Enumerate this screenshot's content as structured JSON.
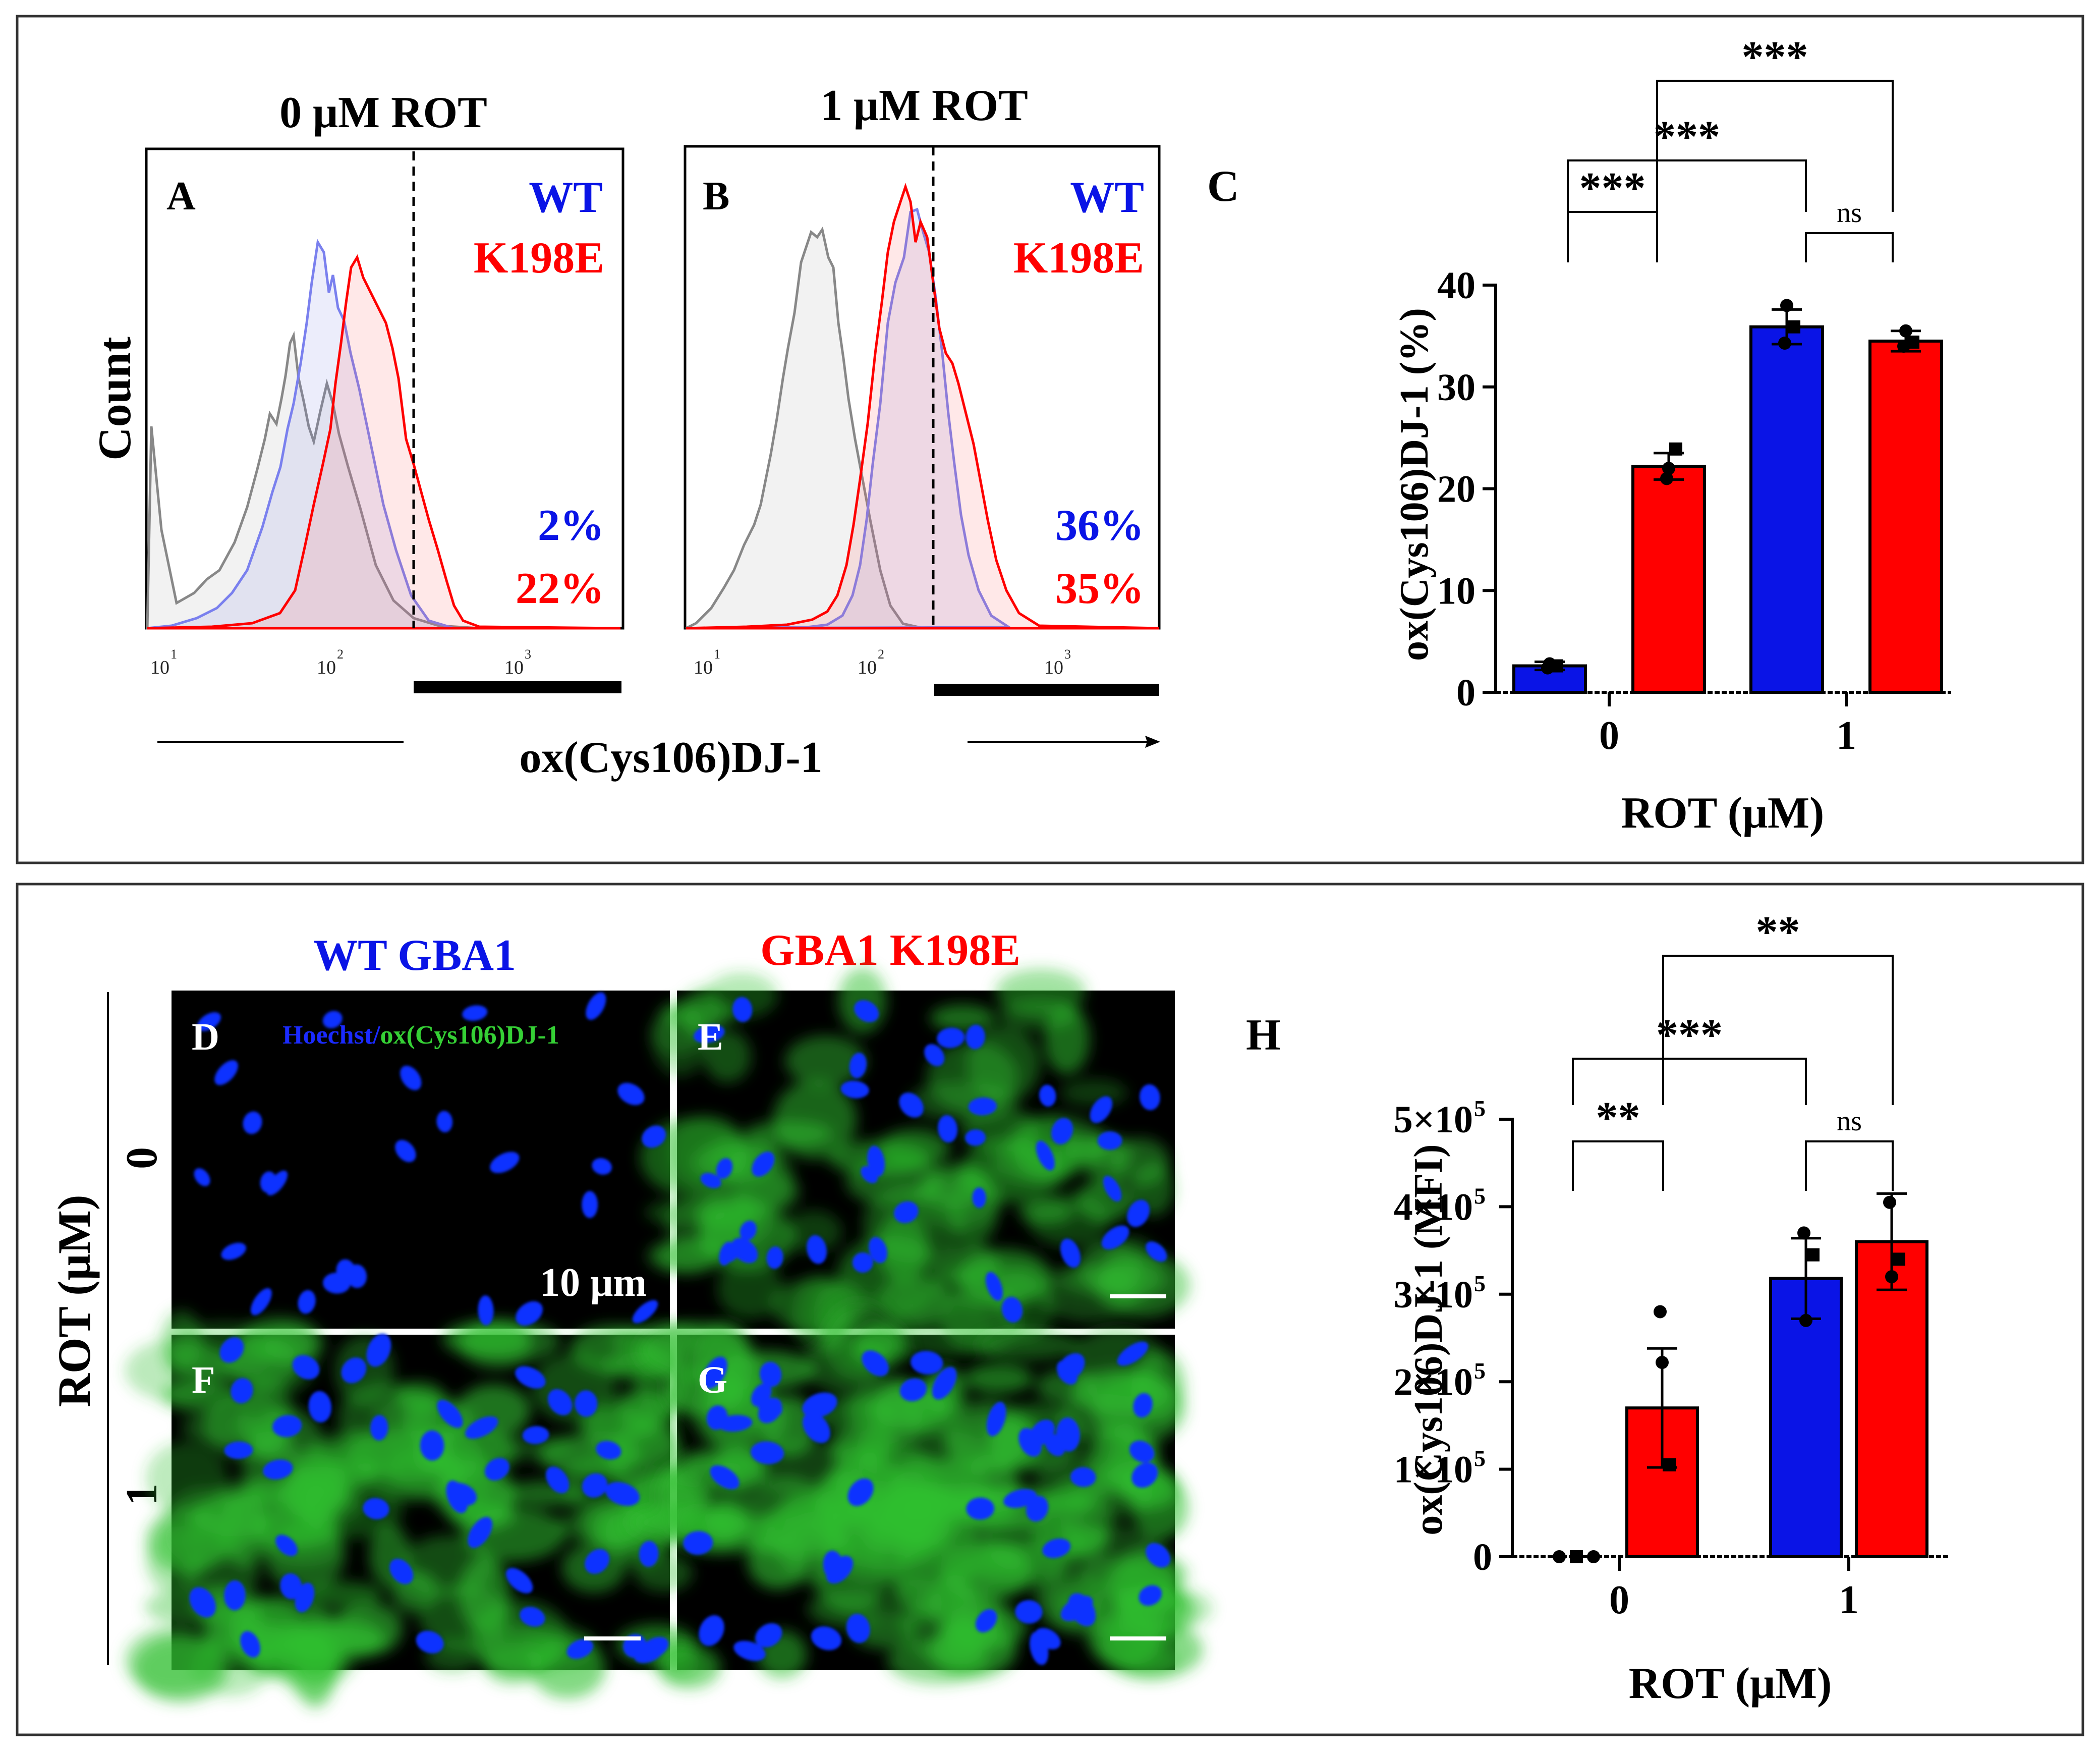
{
  "panels_top": {
    "A": {
      "letter": "A",
      "title": "0 μM ROT",
      "wt_label": "WT",
      "mut_label": "K198E",
      "wt_pct": "2%",
      "mut_pct": "22%"
    },
    "B": {
      "letter": "B",
      "title": "1 μM ROT",
      "wt_label": "WT",
      "mut_label": "K198E",
      "wt_pct": "36%",
      "mut_pct": "35%"
    },
    "count_label": "Count",
    "x_axis_label": "ox(Cys106)DJ-1",
    "tick_labels": [
      "10",
      "1",
      "10",
      "2",
      "10",
      "3"
    ]
  },
  "panel_C": {
    "letter": "C"
  },
  "micrographs": {
    "col_wt": "WT GBA1",
    "col_mut": "GBA1 K198E",
    "row_axis": "ROT (μM)",
    "row0": "0",
    "row1": "1",
    "stain_hoechst": "Hoechst/",
    "stain_dj1": "ox(Cys106)DJ-1",
    "scale": "10 μm",
    "letters": {
      "D": "D",
      "E": "E",
      "F": "F",
      "G": "G"
    }
  },
  "panel_H": {
    "letter": "H"
  },
  "colors": {
    "wt": "#0a14e6",
    "mut": "#ff0000",
    "gray": "#8a8a8a",
    "nuclei": "#1030ff",
    "green": "#30c030"
  },
  "chart_data": [
    {
      "id": "C",
      "type": "bar",
      "categories": [
        "0",
        "1"
      ],
      "series": [
        {
          "name": "WT",
          "values": [
            2.6,
            35.9
          ],
          "errors": [
            0.4,
            1.7
          ],
          "points": [
            [
              2.4,
              2.6,
              2.8
            ],
            [
              34.3,
              35.9,
              38.0
            ]
          ]
        },
        {
          "name": "K198E",
          "values": [
            22.2,
            34.5
          ],
          "errors": [
            1.3,
            1.0
          ],
          "points": [
            [
              21.0,
              23.9,
              22.0
            ],
            [
              34.0,
              34.4,
              35.5
            ]
          ]
        }
      ],
      "xlabel": "ROT (μM)",
      "ylabel": "ox(Cys106)DJ-1  (%)",
      "ylim": [
        0,
        40
      ],
      "yticks": [
        "0",
        "10",
        "20",
        "30",
        "40"
      ],
      "significance": [
        "***",
        "***",
        "***",
        "ns"
      ]
    },
    {
      "id": "H",
      "type": "bar",
      "categories": [
        "0",
        "1"
      ],
      "series": [
        {
          "name": "WT",
          "values": [
            0,
            318000
          ],
          "errors": [
            0,
            46000
          ],
          "points": [
            [
              0,
              0,
              0
            ],
            [
              370000,
              345000,
              270000
            ]
          ]
        },
        {
          "name": "K198E",
          "values": [
            170000,
            360000
          ],
          "errors": [
            68000,
            55000
          ],
          "points": [
            [
              280000,
              105000,
              222000
            ],
            [
              405000,
              340000,
              320000
            ]
          ]
        }
      ],
      "xlabel": "ROT (μM)",
      "ylabel": "ox(Cys106)DJ-1 (MFI)",
      "ylim": [
        0,
        500000
      ],
      "yticks": [
        "0",
        "1×10",
        "2×10",
        "3×10",
        "4×10",
        "5×10"
      ],
      "ytick_exp": "5",
      "significance": [
        "**",
        "***",
        "**",
        "ns"
      ]
    }
  ]
}
